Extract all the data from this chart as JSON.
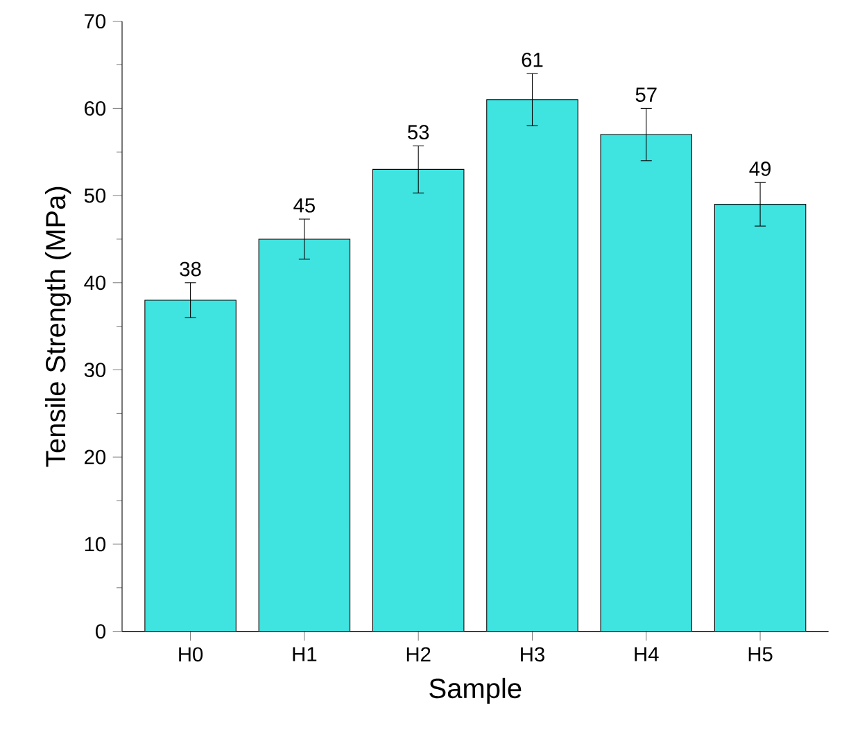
{
  "chart_data": {
    "type": "bar",
    "xlabel": "Sample",
    "ylabel": "Tensile Strength (MPa)",
    "categories": [
      "H0",
      "H1",
      "H2",
      "H3",
      "H4",
      "H5"
    ],
    "values": [
      38,
      45,
      53,
      61,
      57,
      49
    ],
    "errors": [
      2,
      2.3,
      2.7,
      3,
      3,
      2.5
    ],
    "color": "#3fe3e0",
    "data_labels": true,
    "ylim": [
      0,
      70
    ],
    "yticks": [
      0,
      10,
      20,
      30,
      40,
      50,
      60,
      70
    ],
    "grid": false
  }
}
